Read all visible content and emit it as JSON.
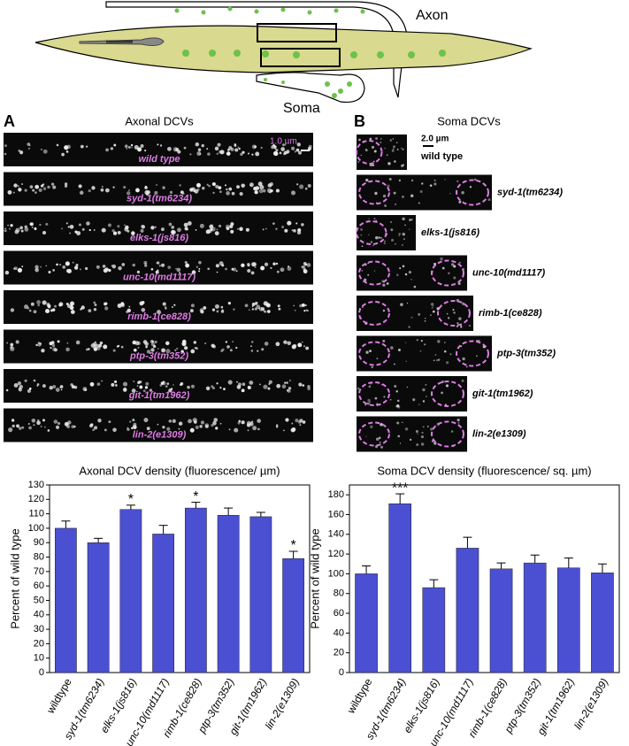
{
  "diagram": {
    "axon_label": "Axon",
    "soma_label": "Soma"
  },
  "panel_a": {
    "letter": "A",
    "title": "Axonal DCVs",
    "scale_bar": "1.0 µm",
    "strains": [
      "wild type",
      "syd-1(tm6234)",
      "elks-1(js816)",
      "unc-10(md1117)",
      "rimb-1(ce828)",
      "ptp-3(tm352)",
      "git-1(tm1962)",
      "lin-2(e1309)"
    ]
  },
  "panel_b": {
    "letter": "B",
    "title": "Soma DCVs",
    "scale_bar": "2.0 µm",
    "strains": [
      "wild type",
      "syd-1(tm6234)",
      "elks-1(js816)",
      "unc-10(md1117)",
      "rimb-1(ce828)",
      "ptp-3(tm352)",
      "git-1(tm1962)",
      "lin-2(e1309)"
    ]
  },
  "chart_data": [
    {
      "type": "bar",
      "title": "Axonal DCV density (fluorescence/ µm)",
      "y_label": "Percent of wild type",
      "categories": [
        "wildtype",
        "syd-1(tm6234)",
        "elks-1(js816)",
        "unc-10(md1117)",
        "rimb-1(ce828)",
        "ptp-3(tm352)",
        "git-1(tm1962)",
        "lin-2(e1309)"
      ],
      "values": [
        100,
        90,
        113,
        96,
        114,
        109,
        108,
        79
      ],
      "errors": [
        5,
        3,
        3,
        6,
        4,
        5,
        3,
        5
      ],
      "color": "#4b4fd2",
      "annotations": [
        {
          "index": 2,
          "text": "*"
        },
        {
          "index": 4,
          "text": "*"
        },
        {
          "index": 7,
          "text": "*"
        }
      ],
      "ylim": [
        0,
        130
      ],
      "yticks": [
        0,
        10,
        20,
        30,
        40,
        50,
        60,
        70,
        80,
        90,
        100,
        110,
        120,
        130
      ]
    },
    {
      "type": "bar",
      "title": "Soma DCV density (fluorescence/ sq. µm)",
      "y_label": "Percent of wild type",
      "categories": [
        "wildtype",
        "syd-1(tm6234)",
        "elks-1(js816)",
        "unc-10(md1117)",
        "rimb-1(ce828)",
        "ptp-3(tm352)",
        "git-1(tm1962)",
        "lin-2(e1309)"
      ],
      "values": [
        100,
        171,
        86,
        126,
        105,
        111,
        106,
        101
      ],
      "errors": [
        8,
        10,
        8,
        11,
        6,
        8,
        10,
        9
      ],
      "color": "#4b4fd2",
      "annotations": [
        {
          "index": 1,
          "text": "***"
        }
      ],
      "ylim": [
        0,
        190
      ],
      "yticks": [
        0,
        20,
        40,
        60,
        80,
        100,
        120,
        140,
        160,
        180
      ]
    }
  ]
}
